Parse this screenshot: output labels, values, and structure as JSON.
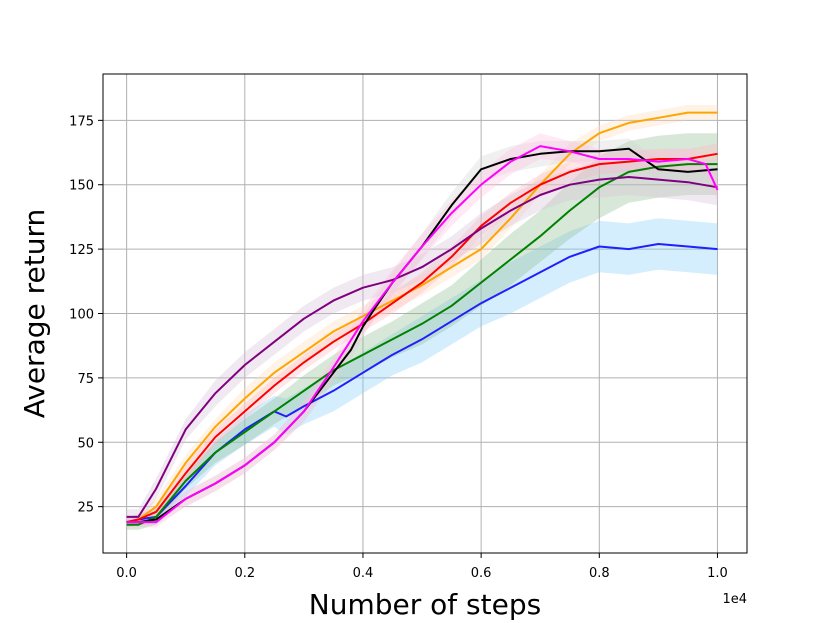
{
  "chart_data": {
    "type": "line",
    "title": "",
    "xlabel": "Number of steps",
    "ylabel": "Average return",
    "x_offset_label": "1e4",
    "xlim": [
      -0.04,
      1.05
    ],
    "ylim": [
      7,
      193
    ],
    "x_ticks": [
      0.0,
      0.2,
      0.4,
      0.6,
      0.8,
      1.0
    ],
    "x_tick_labels": [
      "0.0",
      "0.2",
      "0.4",
      "0.6",
      "0.8",
      "1.0"
    ],
    "y_ticks": [
      25,
      50,
      75,
      100,
      125,
      150,
      175
    ],
    "y_tick_labels": [
      "25",
      "50",
      "75",
      "100",
      "125",
      "150",
      "175"
    ],
    "grid": true,
    "legend": "none",
    "series": [
      {
        "color": "#1f1fff",
        "band_color": "#87cefa",
        "x": [
          0.0,
          0.02,
          0.05,
          0.1,
          0.15,
          0.2,
          0.25,
          0.27,
          0.3,
          0.35,
          0.4,
          0.45,
          0.5,
          0.55,
          0.6,
          0.65,
          0.7,
          0.75,
          0.8,
          0.85,
          0.9,
          0.95,
          1.0
        ],
        "y": [
          19,
          20,
          21,
          33,
          46,
          55,
          62,
          60,
          64,
          70,
          77,
          84,
          90,
          97,
          104,
          110,
          116,
          122,
          126,
          125,
          127,
          126,
          125
        ],
        "band": [
          2,
          2,
          3,
          4,
          5,
          6,
          6,
          7,
          7,
          8,
          8,
          8,
          9,
          9,
          9,
          10,
          10,
          10,
          10,
          10,
          10,
          10,
          10
        ]
      },
      {
        "color": "#008000",
        "band_color": "#8fbc8f",
        "x": [
          0.0,
          0.02,
          0.05,
          0.1,
          0.15,
          0.2,
          0.25,
          0.3,
          0.35,
          0.4,
          0.45,
          0.5,
          0.55,
          0.6,
          0.65,
          0.7,
          0.75,
          0.8,
          0.85,
          0.9,
          0.95,
          1.0
        ],
        "y": [
          18,
          18,
          21,
          35,
          46,
          54,
          62,
          70,
          78,
          84,
          90,
          96,
          103,
          112,
          121,
          130,
          140,
          149,
          155,
          157,
          158,
          158
        ],
        "band": [
          2,
          2,
          3,
          3,
          4,
          5,
          5,
          6,
          6,
          7,
          7,
          8,
          8,
          9,
          10,
          10,
          11,
          12,
          12,
          12,
          12,
          12
        ]
      },
      {
        "color": "#ffa500",
        "band_color": "#ffdab9",
        "x": [
          0.0,
          0.02,
          0.05,
          0.1,
          0.15,
          0.2,
          0.25,
          0.3,
          0.35,
          0.4,
          0.45,
          0.5,
          0.55,
          0.6,
          0.65,
          0.7,
          0.75,
          0.8,
          0.85,
          0.9,
          0.95,
          1.0
        ],
        "y": [
          19,
          20,
          25,
          42,
          56,
          67,
          77,
          85,
          93,
          99,
          105,
          111,
          118,
          125,
          137,
          150,
          162,
          170,
          174,
          176,
          178,
          178
        ],
        "band": [
          2,
          2,
          3,
          3,
          3,
          4,
          4,
          4,
          4,
          4,
          4,
          4,
          4,
          4,
          4,
          4,
          4,
          3,
          3,
          3,
          3,
          3
        ]
      },
      {
        "color": "#ff0000",
        "band_color": "#ffb6c1",
        "x": [
          0.0,
          0.02,
          0.05,
          0.1,
          0.15,
          0.2,
          0.25,
          0.3,
          0.35,
          0.4,
          0.45,
          0.5,
          0.55,
          0.6,
          0.65,
          0.7,
          0.75,
          0.8,
          0.85,
          0.9,
          0.95,
          1.0
        ],
        "y": [
          19,
          20,
          23,
          38,
          52,
          62,
          72,
          81,
          89,
          96,
          104,
          112,
          122,
          134,
          143,
          150,
          155,
          158,
          159,
          160,
          160,
          162
        ],
        "band": [
          2,
          2,
          2,
          3,
          3,
          3,
          3,
          3,
          3,
          3,
          4,
          4,
          4,
          4,
          4,
          4,
          4,
          4,
          4,
          4,
          4,
          4
        ]
      },
      {
        "color": "#800080",
        "band_color": "#d8bfd8",
        "x": [
          0.0,
          0.02,
          0.05,
          0.1,
          0.15,
          0.2,
          0.25,
          0.3,
          0.35,
          0.4,
          0.45,
          0.5,
          0.55,
          0.6,
          0.65,
          0.7,
          0.75,
          0.8,
          0.85,
          0.9,
          0.95,
          1.0
        ],
        "y": [
          21,
          21,
          32,
          55,
          69,
          80,
          89,
          98,
          105,
          110,
          113,
          118,
          125,
          133,
          140,
          146,
          150,
          152,
          153,
          152,
          151,
          149
        ],
        "band": [
          3,
          3,
          4,
          4,
          5,
          5,
          5,
          5,
          5,
          5,
          5,
          5,
          5,
          6,
          6,
          6,
          6,
          7,
          7,
          7,
          7,
          7
        ]
      },
      {
        "color": "#000000",
        "band_color": "#d3d3d3",
        "x": [
          0.0,
          0.02,
          0.05,
          0.1,
          0.15,
          0.2,
          0.25,
          0.3,
          0.35,
          0.38,
          0.4,
          0.42,
          0.45,
          0.5,
          0.55,
          0.6,
          0.65,
          0.7,
          0.75,
          0.8,
          0.85,
          0.9,
          0.95,
          1.0
        ],
        "y": [
          19,
          19,
          20,
          28,
          34,
          41,
          50,
          62,
          77,
          86,
          95,
          102,
          112,
          126,
          142,
          156,
          160,
          162,
          163,
          163,
          164,
          156,
          155,
          156
        ],
        "band": [
          2,
          2,
          2,
          3,
          3,
          3,
          3,
          4,
          4,
          4,
          4,
          4,
          4,
          5,
          5,
          5,
          5,
          5,
          4,
          4,
          4,
          4,
          4,
          4
        ]
      },
      {
        "color": "#ff00ff",
        "band_color": "#ffc0e0",
        "x": [
          0.0,
          0.02,
          0.05,
          0.1,
          0.15,
          0.2,
          0.25,
          0.3,
          0.35,
          0.4,
          0.45,
          0.5,
          0.55,
          0.6,
          0.65,
          0.7,
          0.75,
          0.8,
          0.85,
          0.9,
          0.95,
          0.98,
          1.0
        ],
        "y": [
          19,
          19,
          19,
          28,
          34,
          41,
          50,
          62,
          79,
          97,
          112,
          126,
          139,
          150,
          159,
          165,
          163,
          160,
          160,
          159,
          160,
          158,
          148
        ],
        "band": [
          2,
          2,
          2,
          3,
          3,
          3,
          3,
          4,
          4,
          5,
          5,
          5,
          5,
          5,
          5,
          5,
          4,
          4,
          4,
          4,
          4,
          4,
          4
        ]
      }
    ]
  }
}
